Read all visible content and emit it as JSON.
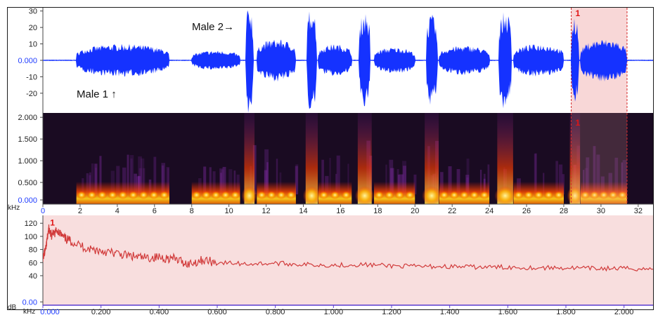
{
  "annotations": {
    "male1": "Male 1 ↑",
    "male2": "Male 2→"
  },
  "selection": {
    "label": "1",
    "start_s": 28.4,
    "end_s": 31.4
  },
  "colors": {
    "waveform": "#1532ff",
    "selection_fill": "#f8d7d7",
    "selection_edge": "#d62a2a",
    "spectrum_line": "#d13b3b",
    "spectrogram_bg": "#1a0b22"
  },
  "waveform_panel": {
    "y_ticks": [
      "30",
      "20",
      "10",
      "0.000",
      "-10",
      "-20"
    ],
    "y_values": [
      30,
      20,
      10,
      0,
      -10,
      -20
    ],
    "ylim": [
      -32,
      32
    ]
  },
  "spectrogram_panel": {
    "unit": "kHz",
    "y_ticks": [
      "2.000",
      "1.500",
      "1.000",
      "0.500",
      "0.000"
    ],
    "y_values": [
      2.0,
      1.5,
      1.0,
      0.5,
      0.0
    ],
    "ylim": [
      0,
      2.1
    ]
  },
  "time_axis": {
    "ticks": [
      "0",
      "2",
      "4",
      "6",
      "8",
      "10",
      "12",
      "14",
      "16",
      "18",
      "20",
      "22",
      "24",
      "26",
      "28",
      "30",
      "32"
    ],
    "values": [
      0,
      2,
      4,
      6,
      8,
      10,
      12,
      14,
      16,
      18,
      20,
      22,
      24,
      26,
      28,
      30,
      32
    ],
    "xlim": [
      0,
      32.8
    ]
  },
  "chart_data": {
    "type": "line",
    "title": "",
    "xlabel": "kHz",
    "ylabel": "dB",
    "xlim": [
      0,
      2.1
    ],
    "ylim": [
      -5,
      132
    ],
    "x_ticks": [
      "0.000",
      "0.200",
      "0.400",
      "0.600",
      "0.800",
      "1.000",
      "1.200",
      "1.400",
      "1.600",
      "1.800",
      "2.000"
    ],
    "x_tick_values": [
      0,
      0.2,
      0.4,
      0.6,
      0.8,
      1.0,
      1.2,
      1.4,
      1.6,
      1.8,
      2.0
    ],
    "y_ticks": [
      "120",
      "100",
      "80",
      "60",
      "40",
      "0.00"
    ],
    "y_tick_values": [
      120,
      100,
      80,
      60,
      40,
      0
    ],
    "series": [
      {
        "label": "1",
        "x": [
          0.0,
          0.01,
          0.02,
          0.03,
          0.05,
          0.07,
          0.1,
          0.15,
          0.2,
          0.25,
          0.3,
          0.35,
          0.4,
          0.45,
          0.5,
          0.55,
          0.6,
          0.7,
          0.8,
          0.9,
          1.0,
          1.1,
          1.2,
          1.3,
          1.4,
          1.5,
          1.6,
          1.7,
          1.8,
          1.9,
          2.0,
          2.1
        ],
        "y": [
          68,
          80,
          112,
          100,
          110,
          98,
          92,
          82,
          78,
          74,
          70,
          67,
          68,
          66,
          58,
          64,
          60,
          58,
          59,
          57,
          56,
          57,
          55,
          54,
          54,
          53,
          53,
          52,
          52,
          51,
          51,
          50
        ]
      }
    ],
    "grid": false
  }
}
